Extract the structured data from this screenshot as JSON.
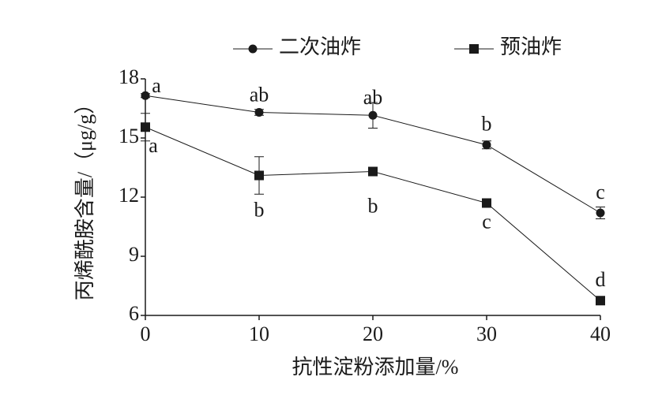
{
  "chart_data": {
    "type": "line",
    "x_label": "抗性淀粉添加量/%",
    "y_label": "丙烯酰胺含量/（μg/g）",
    "x": [
      0,
      10,
      20,
      30,
      40
    ],
    "series": [
      {
        "name": "二次油炸",
        "color": "#1a1a1a",
        "marker": "circle",
        "values": [
          17.15,
          16.3,
          16.15,
          14.65,
          11.2
        ],
        "errors": [
          0.1,
          0.15,
          0.65,
          0.2,
          0.3
        ],
        "labels": [
          "a",
          "ab",
          "ab",
          "b",
          "c"
        ]
      },
      {
        "name": "预油炸",
        "color": "#1a1a1a",
        "marker": "square",
        "values": [
          15.55,
          13.1,
          13.3,
          11.7,
          6.75
        ],
        "errors": [
          0.7,
          0.95,
          0.15,
          0.1,
          0.2
        ],
        "labels": [
          "a",
          "b",
          "b",
          "c",
          "d"
        ]
      }
    ],
    "xlim": [
      0,
      40
    ],
    "xticks": [
      0,
      10,
      20,
      30,
      40
    ],
    "ylim": [
      6,
      18
    ],
    "yticks": [
      6,
      9,
      12,
      15,
      18
    ],
    "legend": "top"
  }
}
